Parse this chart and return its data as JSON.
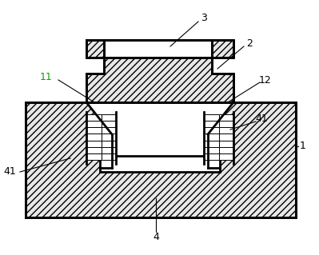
{
  "bg_color": "#ffffff",
  "line_color": "#000000",
  "hatch_color": "#aaaaaa",
  "fill_color": "#e8e8e8",
  "white_fill": "#ffffff",
  "lw_thick": 2.0,
  "lw_thin": 0.8,
  "hatch_style": "////",
  "figsize": [
    3.99,
    3.19
  ],
  "dpi": 100
}
